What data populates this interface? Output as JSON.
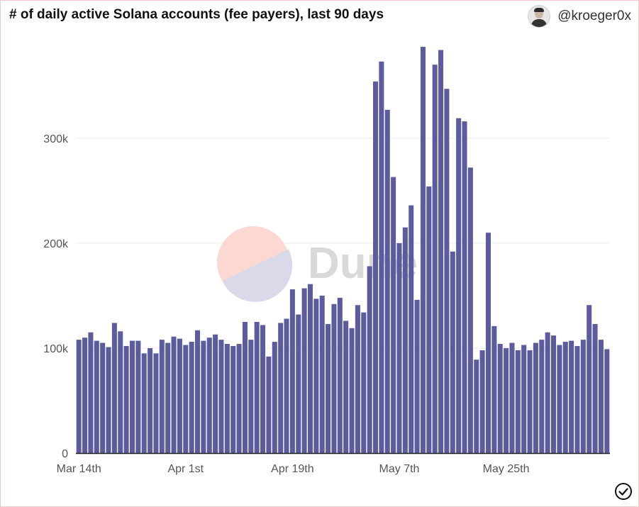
{
  "header": {
    "title": "# of daily active Solana accounts (fee payers), last 90 days",
    "username": "@kroeger0x"
  },
  "watermark": {
    "text": "Dune"
  },
  "icons": {
    "avatar": "user-avatar",
    "status": "check-circle-icon"
  },
  "colors": {
    "bar": "#5b5b9e",
    "grid": "#ebebeb",
    "axis": "#222222",
    "tick_text": "#555555"
  },
  "chart_data": {
    "type": "bar",
    "title": "# of daily active Solana accounts (fee payers), last 90 days",
    "xlabel": "",
    "ylabel": "",
    "ylim": [
      0,
      385000
    ],
    "yticks": [
      0,
      100000,
      200000,
      300000
    ],
    "ytick_labels": [
      "0",
      "100k",
      "200k",
      "300k"
    ],
    "xtick_labels": [
      {
        "label": "Mar 14th",
        "index": 0
      },
      {
        "label": "Apr 1st",
        "index": 18
      },
      {
        "label": "Apr 19th",
        "index": 36
      },
      {
        "label": "May 7th",
        "index": 54
      },
      {
        "label": "May 25th",
        "index": 72
      }
    ],
    "grid": true,
    "legend": "none",
    "values": [
      108000,
      110000,
      115000,
      107000,
      105000,
      101000,
      124000,
      116000,
      102000,
      107000,
      107000,
      95000,
      100000,
      95000,
      108000,
      105000,
      111000,
      109000,
      103000,
      106000,
      117000,
      107000,
      110000,
      113000,
      108000,
      104000,
      102000,
      104000,
      125000,
      108000,
      125000,
      122000,
      92000,
      106000,
      124000,
      128000,
      156000,
      132000,
      157000,
      161000,
      147000,
      150000,
      123000,
      142000,
      148000,
      126000,
      119000,
      141000,
      134000,
      178000,
      354000,
      373000,
      327000,
      263000,
      200000,
      215000,
      236000,
      146000,
      387000,
      254000,
      370000,
      384000,
      347000,
      192000,
      319000,
      316000,
      272000,
      89000,
      98000,
      210000,
      121000,
      104000,
      100000,
      105000,
      98000,
      103000,
      98000,
      105000,
      108000,
      115000,
      112000,
      103000,
      106000,
      107000,
      102000,
      108000,
      141000,
      123000,
      108000,
      99000
    ]
  }
}
